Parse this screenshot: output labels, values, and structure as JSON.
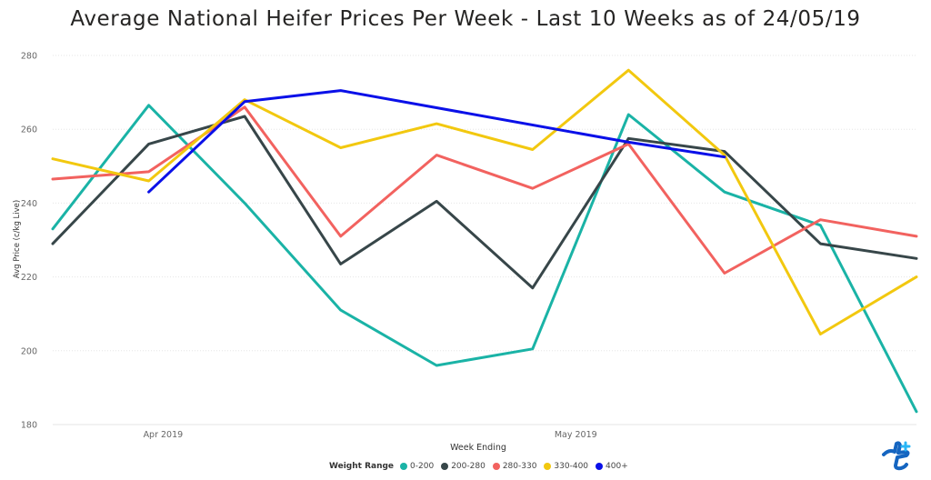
{
  "chart_data": {
    "type": "line",
    "title": "Average National Heifer Prices Per Week - Last 10 Weeks as of 24/05/19",
    "xlabel": "Week Ending",
    "ylabel": "Avg Price (c/kg Live)",
    "ylim": [
      180,
      280
    ],
    "yticks": [
      180,
      200,
      220,
      240,
      260,
      280
    ],
    "x": [
      1,
      2,
      3,
      4,
      5,
      6,
      7,
      8,
      9,
      10
    ],
    "xticks": [
      {
        "label": "Apr 2019",
        "at": 2.15
      },
      {
        "label": "May 2019",
        "at": 6.45
      }
    ],
    "grid": true,
    "legend_title": "Weight Range",
    "legend_position": "bottom",
    "series": [
      {
        "name": "0-200",
        "color": "#1ab3a6",
        "values": [
          233,
          266.5,
          240,
          211,
          196,
          200.5,
          264,
          243,
          234,
          183.5
        ]
      },
      {
        "name": "200-280",
        "color": "#374649",
        "values": [
          229,
          256,
          263.5,
          223.5,
          240.5,
          217,
          257.5,
          254,
          229,
          225
        ]
      },
      {
        "name": "280-330",
        "color": "#f2625f",
        "values": [
          246.5,
          248.5,
          266,
          231,
          253,
          244,
          256,
          221,
          235.5,
          231
        ]
      },
      {
        "name": "330-400",
        "color": "#f2c80f",
        "values": [
          252,
          246,
          268,
          255,
          261.5,
          254.5,
          276,
          253,
          204.5,
          220
        ]
      },
      {
        "name": "400+",
        "color": "#0a10e8",
        "values": [
          null,
          243,
          267.5,
          270.5,
          null,
          null,
          256.5,
          252.5,
          null,
          null
        ]
      }
    ]
  }
}
